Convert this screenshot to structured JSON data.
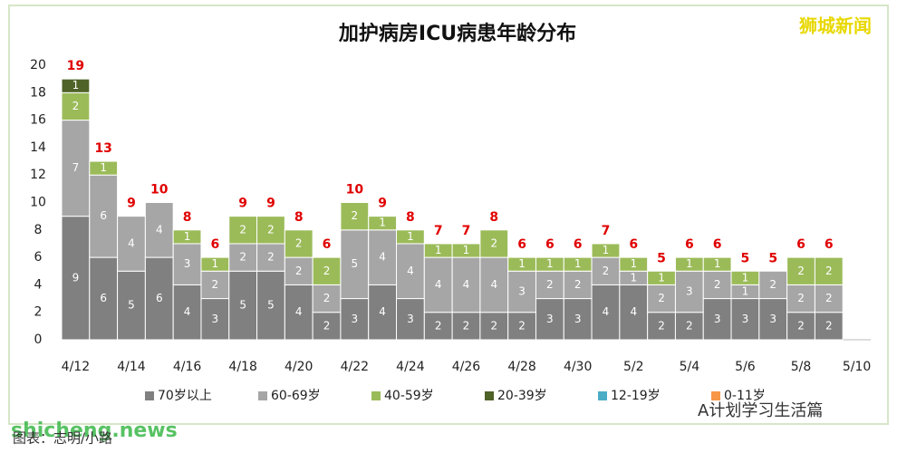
{
  "chart_data": {
    "type": "stacked_bar",
    "title": "加护病房ICU病患年龄分布",
    "categories": [
      "4/12",
      null,
      "4/14",
      null,
      "4/16",
      null,
      "4/18",
      null,
      "4/20",
      null,
      "4/22",
      null,
      "4/24",
      null,
      "4/26",
      null,
      "4/28",
      null,
      "4/30",
      null,
      "5/2",
      null,
      "5/4",
      null,
      "5/6",
      null,
      "5/8",
      null,
      "5/10"
    ],
    "series": [
      {
        "name": "70岁以上",
        "color": "#808080",
        "values": [
          9,
          6,
          5,
          6,
          4,
          3,
          5,
          5,
          4,
          2,
          3,
          4,
          3,
          2,
          2,
          2,
          2,
          3,
          3,
          4,
          4,
          2,
          2,
          3,
          3,
          3,
          2,
          2,
          null
        ]
      },
      {
        "name": "60-69岁",
        "color": "#a6a6a6",
        "values": [
          7,
          6,
          4,
          4,
          3,
          2,
          2,
          2,
          2,
          2,
          5,
          4,
          4,
          4,
          4,
          4,
          3,
          2,
          2,
          2,
          1,
          2,
          3,
          2,
          1,
          2,
          2,
          2,
          null
        ]
      },
      {
        "name": "40-59岁",
        "color": "#9bbb59",
        "values": [
          2,
          1,
          null,
          null,
          1,
          1,
          2,
          2,
          2,
          2,
          2,
          1,
          1,
          1,
          1,
          2,
          1,
          1,
          1,
          1,
          1,
          1,
          1,
          1,
          1,
          null,
          2,
          2,
          null
        ]
      },
      {
        "name": "20-39岁",
        "color": "#4f6228",
        "values": [
          1,
          null,
          null,
          null,
          null,
          null,
          null,
          null,
          null,
          null,
          null,
          null,
          null,
          null,
          null,
          null,
          null,
          null,
          null,
          null,
          null,
          null,
          null,
          null,
          null,
          null,
          null,
          null,
          null
        ]
      },
      {
        "name": "12-19岁",
        "color": "#4bacc6",
        "values": [
          null,
          null,
          null,
          null,
          null,
          null,
          null,
          null,
          null,
          null,
          null,
          null,
          null,
          null,
          null,
          null,
          null,
          null,
          null,
          null,
          null,
          null,
          null,
          null,
          null,
          null,
          null,
          null,
          null
        ]
      },
      {
        "name": "0-11岁",
        "color": "#f79646",
        "values": [
          null,
          null,
          null,
          null,
          null,
          null,
          null,
          null,
          null,
          null,
          null,
          null,
          null,
          null,
          null,
          null,
          null,
          null,
          null,
          null,
          null,
          null,
          null,
          null,
          null,
          null,
          null,
          null,
          null
        ]
      }
    ],
    "totals": [
      19,
      13,
      9,
      10,
      8,
      6,
      9,
      9,
      8,
      6,
      10,
      9,
      8,
      7,
      7,
      8,
      6,
      6,
      6,
      7,
      6,
      5,
      6,
      6,
      5,
      5,
      6,
      6,
      null
    ],
    "total_color": "#e00000",
    "ylim": [
      0,
      20
    ],
    "yticks": [
      0,
      2,
      4,
      6,
      8,
      10,
      12,
      14,
      16,
      18,
      20
    ],
    "grid": false,
    "legend": "bottom",
    "watermarks": [
      "狮城新闻",
      "shicheng.news",
      "A计划学习生活篇"
    ],
    "caption": "图表：志明/小路"
  }
}
